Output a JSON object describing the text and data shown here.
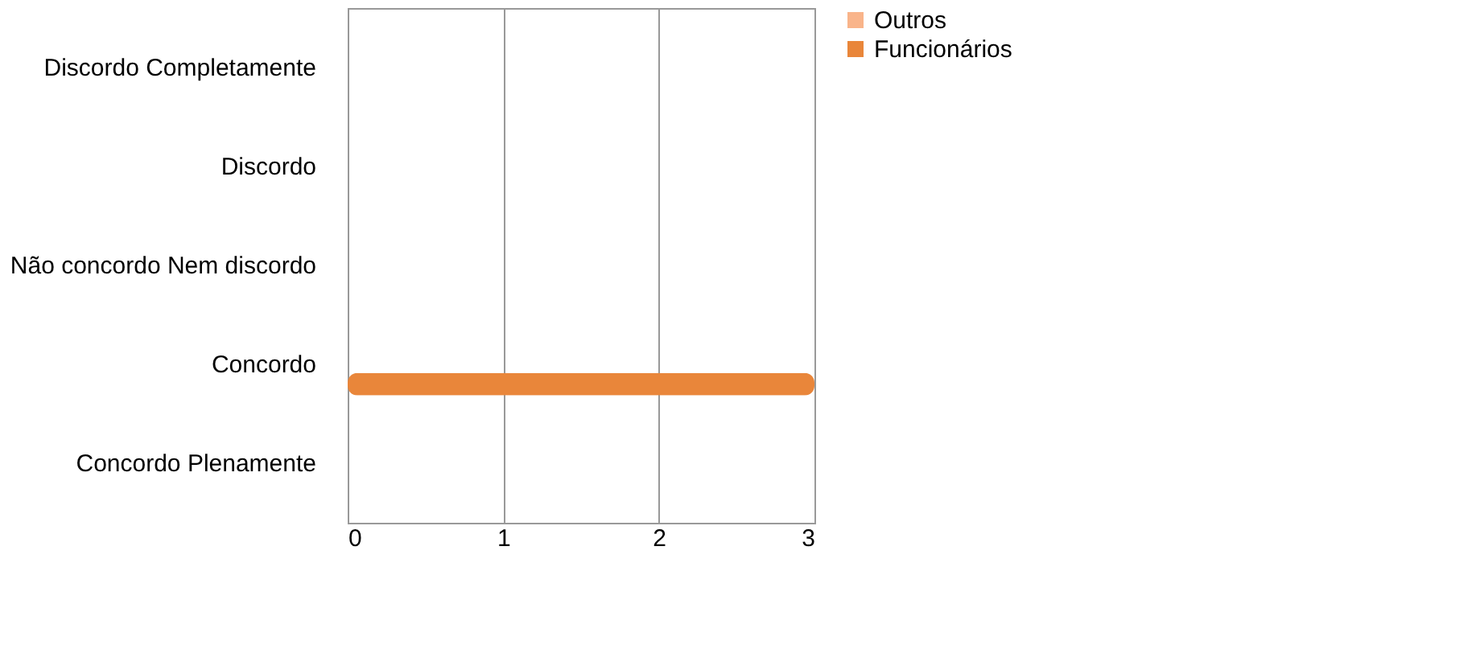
{
  "chart_data": {
    "type": "bar",
    "orientation": "horizontal",
    "categories": [
      "Discordo Completamente",
      "Discordo ",
      "Não concordo Nem discordo",
      "Concordo",
      "Concordo Plenamente"
    ],
    "series": [
      {
        "name": "Funcionários",
        "color": "#e9863a",
        "values": [
          0,
          0,
          0,
          3,
          0
        ]
      },
      {
        "name": "Outros",
        "color": "#f9b48a",
        "values": [
          0,
          0,
          0,
          0,
          0
        ]
      }
    ],
    "xlim": [
      0,
      3
    ],
    "xticks": [
      0,
      1,
      2,
      3
    ],
    "grid": "x",
    "legend": "right"
  }
}
